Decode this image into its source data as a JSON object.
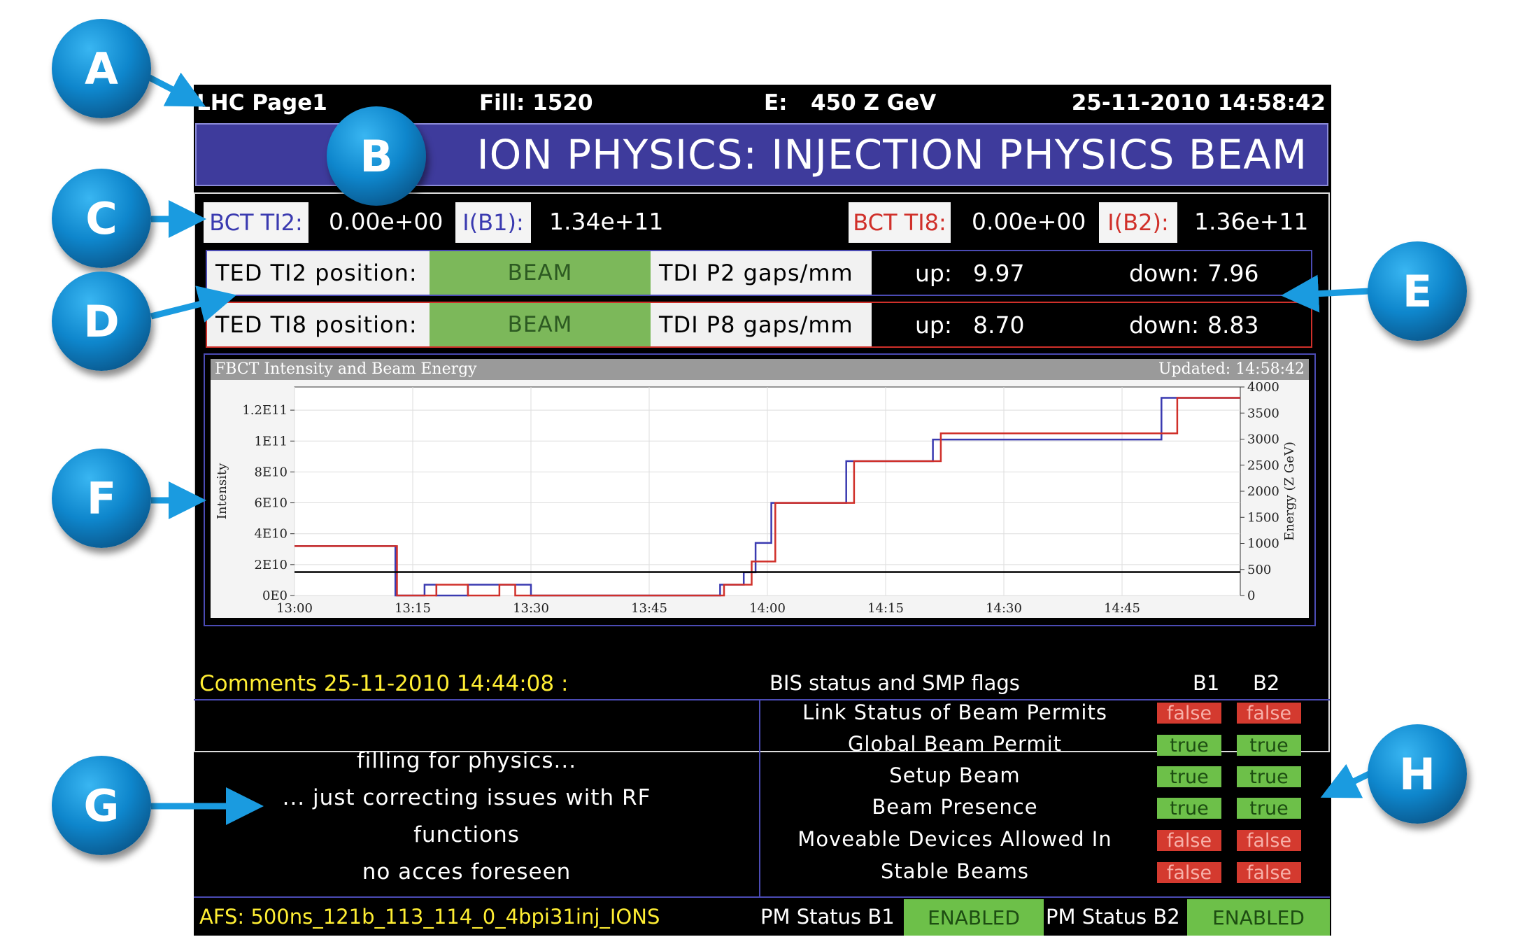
{
  "callouts": [
    "A",
    "B",
    "C",
    "D",
    "E",
    "F",
    "G",
    "H"
  ],
  "topbar": {
    "page": "LHC Page1",
    "fill": "Fill: 1520",
    "energy_label": "E:",
    "energy_value": "450 Z GeV",
    "datetime": "25-11-2010 14:58:42"
  },
  "banner": "ION PHYSICS: INJECTION PHYSICS BEAM",
  "bct": {
    "ti2_label": "BCT TI2:",
    "ti2_value": "0.00e+00",
    "ib1_label": "I(B1):",
    "ib1_value": "1.34e+11",
    "ti8_label": "BCT TI8:",
    "ti8_value": "0.00e+00",
    "ib2_label": "I(B2):",
    "ib2_value": "1.36e+11"
  },
  "ted_rows": [
    {
      "label": "TED TI2 position:",
      "status": "BEAM",
      "tdi": "TDI P2 gaps/mm",
      "up_label": "up:",
      "up": "9.97",
      "down_label": "down:",
      "down": "7.96"
    },
    {
      "label": "TED TI8 position:",
      "status": "BEAM",
      "tdi": "TDI P8 gaps/mm",
      "up_label": "up:",
      "up": "8.70",
      "down_label": "down:",
      "down": "8.83"
    }
  ],
  "chart": {
    "title": "FBCT Intensity and Beam Energy",
    "updated": "Updated: 14:58:42"
  },
  "colors": {
    "b1": "#3a3ab0",
    "b2": "#d0302a",
    "energy": "#000000",
    "banner": "#3e3b9c",
    "ok": "#6dc049",
    "bad": "#d43a2f"
  },
  "chart_data": {
    "type": "line",
    "xlabel": "",
    "ylabel": "Intensity",
    "y2label": "Energy (Z GeV)",
    "x_ticks": [
      "13:00",
      "13:15",
      "13:30",
      "13:45",
      "14:00",
      "14:15",
      "14:30",
      "14:45"
    ],
    "y_ticks": [
      "0E0",
      "2E10",
      "4E10",
      "6E10",
      "8E10",
      "1E11",
      "1.2E11"
    ],
    "y2_ticks": [
      "0",
      "500",
      "1000",
      "1500",
      "2000",
      "2500",
      "3000",
      "3500",
      "4000"
    ],
    "xlim_minutes": [
      0,
      120
    ],
    "ylim": [
      0,
      135000000000.0
    ],
    "y2lim": [
      0,
      4000
    ],
    "grid": true,
    "series": [
      {
        "axis": "left",
        "values": [
          [
            0,
            32000000000.0
          ],
          [
            12.8,
            32000000000.0
          ],
          [
            12.8,
            0
          ],
          [
            16.5,
            0
          ],
          [
            16.5,
            7000000000.0
          ],
          [
            18,
            7000000000.0
          ],
          [
            18,
            0
          ],
          [
            22,
            0
          ],
          [
            22,
            7000000000.0
          ],
          [
            30,
            7000000000.0
          ],
          [
            30,
            0
          ],
          [
            44,
            0
          ],
          [
            44,
            0
          ],
          [
            54,
            0
          ],
          [
            54,
            7000000000.0
          ],
          [
            57,
            7000000000.0
          ],
          [
            57,
            15000000000.0
          ],
          [
            58.5,
            15000000000.0
          ],
          [
            58.5,
            34000000000.0
          ],
          [
            60.5,
            34000000000.0
          ],
          [
            60.5,
            60000000000.0
          ],
          [
            70,
            60000000000.0
          ],
          [
            70,
            87000000000.0
          ],
          [
            81,
            87000000000.0
          ],
          [
            81,
            101000000000.0
          ],
          [
            104,
            101000000000.0
          ],
          [
            104,
            101000000000.0
          ],
          [
            110,
            101000000000.0
          ],
          [
            110,
            128000000000.0
          ],
          [
            120,
            128000000000.0
          ]
        ]
      },
      {
        "axis": "left",
        "values": [
          [
            0,
            32000000000.0
          ],
          [
            13,
            32000000000.0
          ],
          [
            13,
            0
          ],
          [
            18,
            0
          ],
          [
            18,
            7000000000.0
          ],
          [
            22,
            7000000000.0
          ],
          [
            22,
            0
          ],
          [
            26,
            0
          ],
          [
            26,
            7000000000.0
          ],
          [
            28,
            7000000000.0
          ],
          [
            28,
            0
          ],
          [
            54.5,
            0
          ],
          [
            54.5,
            7000000000.0
          ],
          [
            58,
            7000000000.0
          ],
          [
            58,
            22000000000.0
          ],
          [
            61,
            22000000000.0
          ],
          [
            61,
            60000000000.0
          ],
          [
            71,
            60000000000.0
          ],
          [
            71,
            87000000000.0
          ],
          [
            82,
            87000000000.0
          ],
          [
            82,
            105000000000.0
          ],
          [
            110,
            105000000000.0
          ],
          [
            112,
            105000000000.0
          ],
          [
            112,
            128000000000.0
          ],
          [
            120,
            128000000000.0
          ]
        ]
      },
      {
        "axis": "right",
        "values": [
          [
            0,
            450
          ],
          [
            120,
            450
          ]
        ]
      }
    ]
  },
  "comments": {
    "header": "Comments 25-11-2010 14:44:08 :",
    "lines": [
      "filling for physics...",
      "... just correcting issues with RF",
      "functions",
      "no acces foreseen"
    ]
  },
  "bis": {
    "header": "BIS status and SMP flags",
    "col_b1": "B1",
    "col_b2": "B2",
    "rows": [
      {
        "label": "Link Status of Beam Permits",
        "b1": "false",
        "b2": "false"
      },
      {
        "label": "Global Beam Permit",
        "b1": "true",
        "b2": "true"
      },
      {
        "label": "Setup Beam",
        "b1": "true",
        "b2": "true"
      },
      {
        "label": "Beam Presence",
        "b1": "true",
        "b2": "true"
      },
      {
        "label": "Moveable Devices Allowed In",
        "b1": "false",
        "b2": "false"
      },
      {
        "label": "Stable Beams",
        "b1": "false",
        "b2": "false"
      }
    ]
  },
  "footer": {
    "afs": "AFS: 500ns_121b_113_114_0_4bpi31inj_IONS",
    "pm_b1_label": "PM Status B1",
    "pm_b1": "ENABLED",
    "pm_b2_label": "PM Status B2",
    "pm_b2": "ENABLED"
  }
}
